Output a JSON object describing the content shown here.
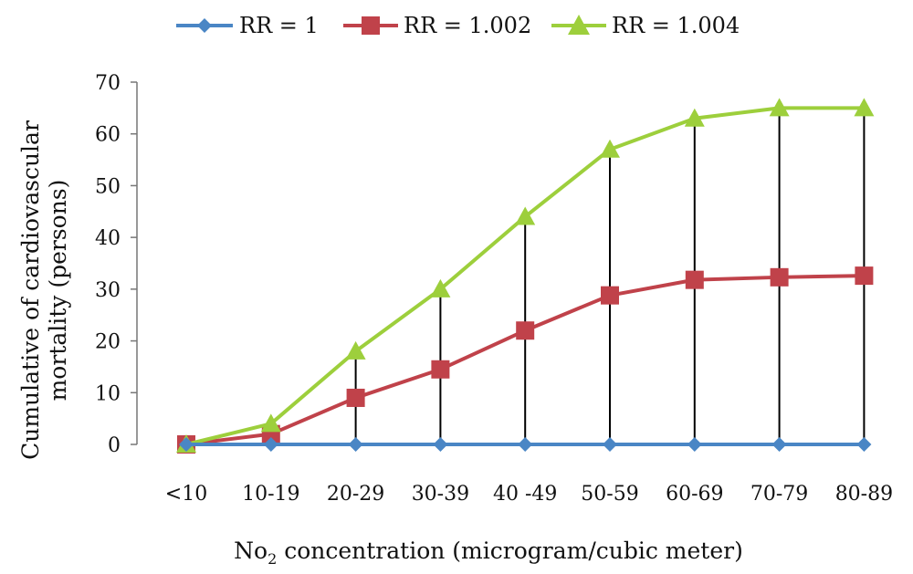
{
  "chart_data": {
    "type": "line",
    "title": "",
    "categories": [
      "<10",
      "10-19",
      "20-29",
      "30-39",
      "40 -49",
      "50-59",
      "60-69",
      "70-79",
      "80-89"
    ],
    "series": [
      {
        "name": "RR = 1",
        "values": [
          0,
          0,
          0,
          0,
          0,
          0,
          0,
          0,
          0
        ],
        "color": "#4a86c5",
        "marker": "diamond"
      },
      {
        "name": "RR = 1.002",
        "values": [
          0,
          2,
          9,
          14.5,
          22,
          28.8,
          31.8,
          32.3,
          32.6
        ],
        "color": "#c0424a",
        "marker": "square"
      },
      {
        "name": "RR = 1.004",
        "values": [
          0,
          4,
          18,
          30,
          44,
          57,
          63,
          65,
          65
        ],
        "color": "#9dcf3c",
        "marker": "triangle"
      }
    ],
    "ylim": [
      0,
      70
    ],
    "yticks": [
      0,
      10,
      20,
      30,
      40,
      50,
      60,
      70
    ],
    "ylabel_line1": "Cumulative of cardiovascular",
    "ylabel_line2": "mortality (persons)",
    "xlabel_prefix": "No",
    "xlabel_sub": "2",
    "xlabel_suffix": " concentration (microgram/cubic meter)",
    "drop_lines": true,
    "grid": false,
    "legend_position": "top"
  }
}
